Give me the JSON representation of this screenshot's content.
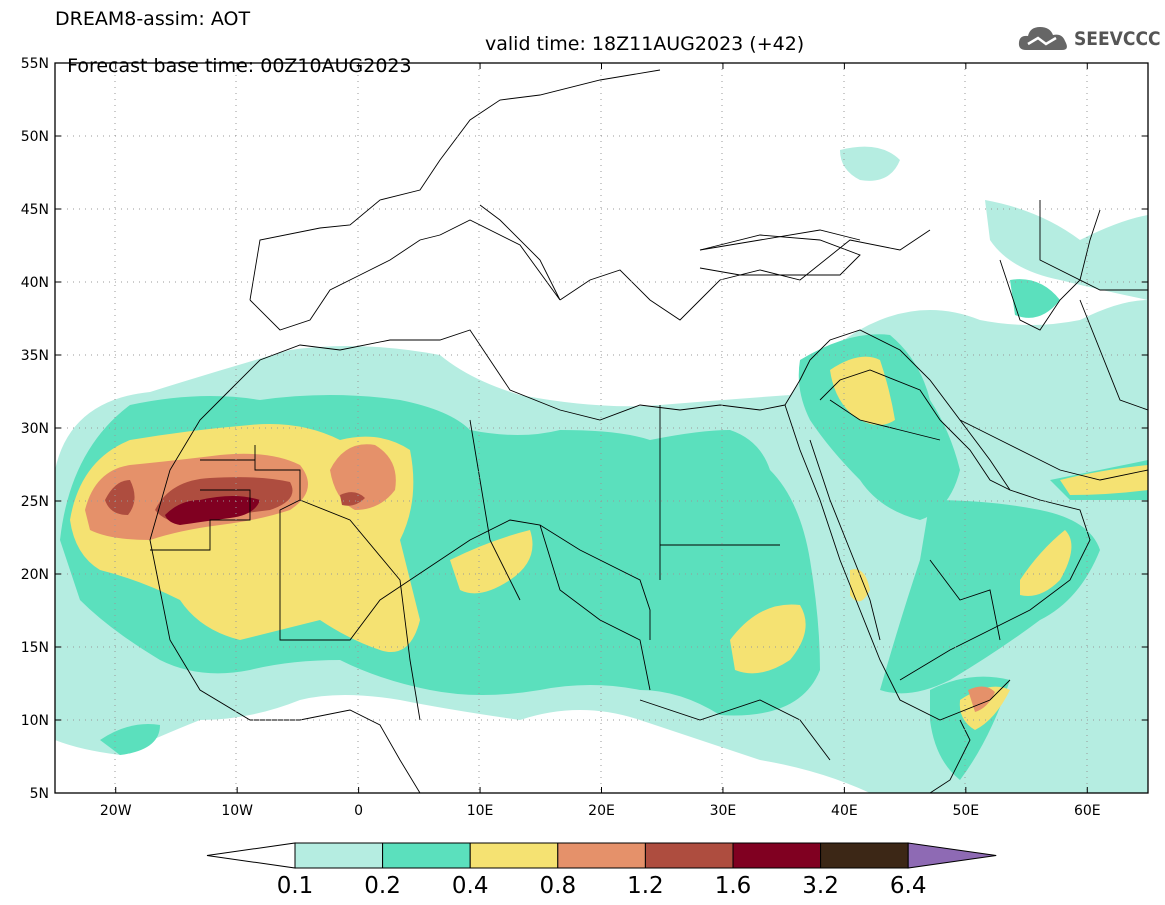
{
  "header": {
    "title_line1": "DREAM8-assim: AOT",
    "base_time": "Forecast base time: 00Z10AUG2023",
    "valid_time": "valid time: 18Z11AUG2023 (+42)",
    "logo_text": "SEEVCCC",
    "logo_icon": "cloud-icon"
  },
  "map": {
    "lon_range": [
      -25,
      65
    ],
    "lat_range": [
      5,
      55
    ],
    "lat_labels": [
      "55N",
      "50N",
      "45N",
      "40N",
      "35N",
      "30N",
      "25N",
      "20N",
      "15N",
      "10N",
      "5N"
    ],
    "lon_labels": [
      "20W",
      "10W",
      "0",
      "10E",
      "20E",
      "30E",
      "40E",
      "50E",
      "60E"
    ]
  },
  "colorbar": {
    "labels": [
      "0.1",
      "0.2",
      "0.4",
      "0.8",
      "1.2",
      "1.6",
      "3.2",
      "6.4"
    ],
    "colors": [
      "#ffffff",
      "#b5ede1",
      "#5be0bd",
      "#f5e272",
      "#e5916a",
      "#ae4d3f",
      "#800021",
      "#3c2716",
      "#8e6ab4"
    ]
  }
}
